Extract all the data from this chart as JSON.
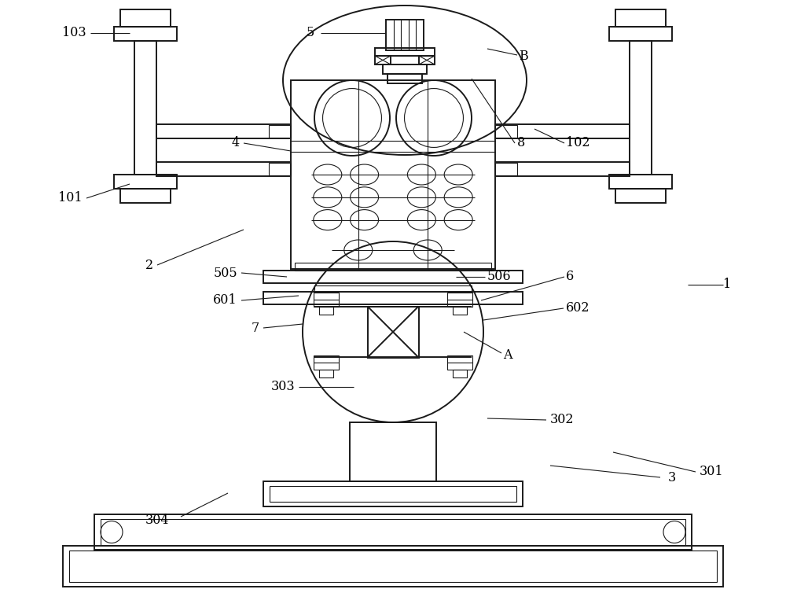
{
  "bg_color": "#ffffff",
  "line_color": "#1a1a1a",
  "lw": 1.4,
  "lw_thin": 0.8,
  "figsize": [
    10.0,
    7.82
  ],
  "dpi": 100
}
